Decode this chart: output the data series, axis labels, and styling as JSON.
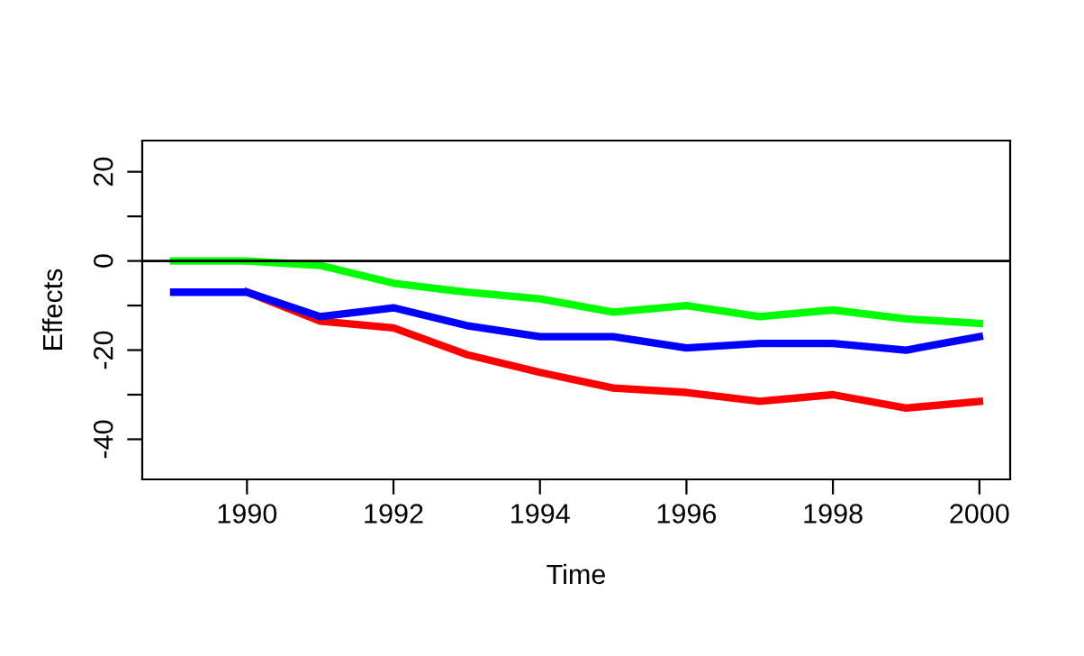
{
  "chart_data": {
    "type": "line",
    "xlabel": "Time",
    "ylabel": "Effects",
    "x": [
      1989,
      1990,
      1991,
      1992,
      1993,
      1994,
      1995,
      1996,
      1997,
      1998,
      1999,
      2000
    ],
    "series": [
      {
        "color": "#ff0000",
        "values": [
          null,
          -7,
          -13.5,
          -15,
          -21,
          -25,
          -28.5,
          -29.5,
          -31.5,
          -30,
          -33,
          -31.5
        ]
      },
      {
        "color": "#0000ff",
        "values": [
          -7,
          -7,
          -12.5,
          -10.5,
          -14.5,
          -17,
          -17,
          -19.5,
          -18.5,
          -18.5,
          -20,
          -17
        ]
      },
      {
        "color": "#00ff00",
        "values": [
          0,
          0,
          -1,
          -5,
          -7,
          -8.5,
          -11.5,
          -10,
          -12.5,
          -11,
          -13,
          -14
        ]
      }
    ],
    "xlim": [
      1988.57,
      2000.42
    ],
    "xticks": [
      1990,
      1992,
      1994,
      1996,
      1998,
      2000
    ],
    "ylim": [
      -49,
      27
    ],
    "yticks": [
      -40,
      {
        "value": -30,
        "label": null
      },
      -20,
      {
        "value": -10,
        "label": null
      },
      0,
      {
        "value": 10,
        "label": null
      },
      20
    ],
    "ref_lines": [
      {
        "axis": "y",
        "value": 0,
        "color": "#000000"
      }
    ],
    "grid": false,
    "legend": false,
    "line_style": "solid",
    "marker": "none"
  }
}
